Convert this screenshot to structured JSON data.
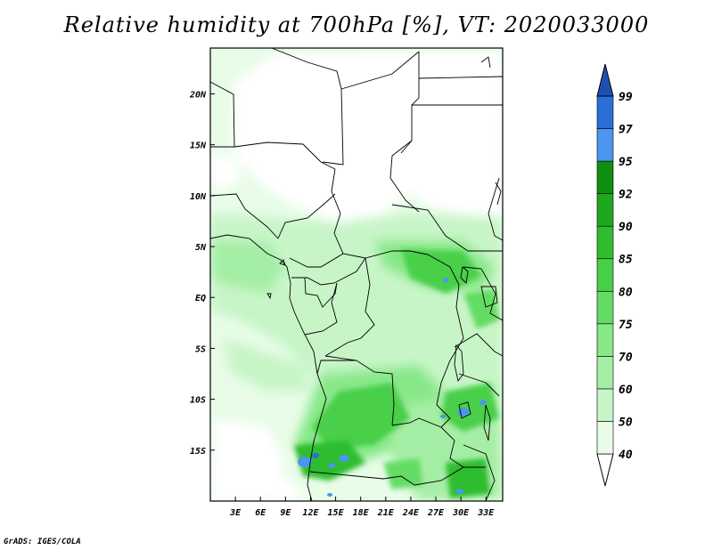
{
  "title": "Relative humidity at 700hPa [%], VT: 2020033000",
  "credit": "GrADS: IGES/COLA",
  "map": {
    "lon_range": [
      0,
      35
    ],
    "lat_range": [
      -20,
      24.5
    ],
    "lon_ticks": [
      {
        "value": 3,
        "label": "3E"
      },
      {
        "value": 6,
        "label": "6E"
      },
      {
        "value": 9,
        "label": "9E"
      },
      {
        "value": 12,
        "label": "12E"
      },
      {
        "value": 15,
        "label": "15E"
      },
      {
        "value": 18,
        "label": "18E"
      },
      {
        "value": 21,
        "label": "21E"
      },
      {
        "value": 24,
        "label": "24E"
      },
      {
        "value": 27,
        "label": "27E"
      },
      {
        "value": 30,
        "label": "30E"
      },
      {
        "value": 33,
        "label": "33E"
      }
    ],
    "lat_ticks": [
      {
        "value": 20,
        "label": "20N"
      },
      {
        "value": 15,
        "label": "15N"
      },
      {
        "value": 10,
        "label": "10N"
      },
      {
        "value": 5,
        "label": "5N"
      },
      {
        "value": 0,
        "label": "EQ"
      },
      {
        "value": -5,
        "label": "5S"
      },
      {
        "value": -10,
        "label": "10S"
      },
      {
        "value": -15,
        "label": "15S"
      }
    ]
  },
  "colorbar": {
    "levels": [
      {
        "label": "40",
        "color": "#ffffff"
      },
      {
        "label": "50",
        "color": "#e8fce8"
      },
      {
        "label": "60",
        "color": "#c8f5c8"
      },
      {
        "label": "70",
        "color": "#a5eea5"
      },
      {
        "label": "75",
        "color": "#88e888"
      },
      {
        "label": "80",
        "color": "#64dc64"
      },
      {
        "label": "85",
        "color": "#48cf48"
      },
      {
        "label": "90",
        "color": "#2fbd2f"
      },
      {
        "label": "92",
        "color": "#1ea81e"
      },
      {
        "label": "95",
        "color": "#0f8f0f"
      },
      {
        "label": "97",
        "color": "#4a96f0"
      },
      {
        "label": "99",
        "color": "#2a6fd8"
      }
    ],
    "top_color": "#1e50b4"
  }
}
